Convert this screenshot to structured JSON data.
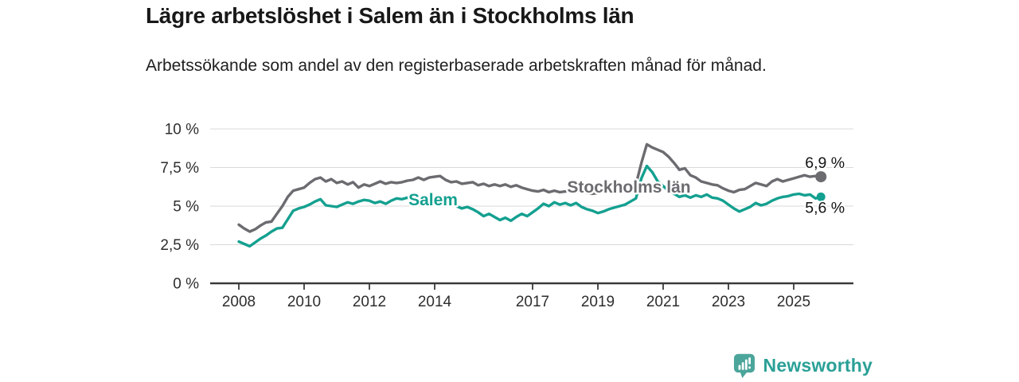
{
  "chart_data": {
    "type": "line",
    "title": "Lägre arbetslöshet i Salem än i Stockholms län",
    "subtitle": "Arbetssökande som andel av den registerbaserade arbetskraften månad för månad.",
    "grid": true,
    "legend": "inline-labels",
    "x_axis": {
      "ticks": [
        {
          "value": 2008,
          "label": "2008"
        },
        {
          "value": 2010,
          "label": "2010"
        },
        {
          "value": 2012,
          "label": "2012"
        },
        {
          "value": 2014,
          "label": "2014"
        },
        {
          "value": 2017,
          "label": "2017"
        },
        {
          "value": 2019,
          "label": "2019"
        },
        {
          "value": 2021,
          "label": "2021"
        },
        {
          "value": 2023,
          "label": "2023"
        },
        {
          "value": 2025,
          "label": "2025"
        }
      ]
    },
    "y_axis": {
      "range": [
        0,
        10
      ],
      "ticks": [
        {
          "value": 0,
          "label": "0 %"
        },
        {
          "value": 2.5,
          "label": "2,5 %"
        },
        {
          "value": 5,
          "label": "5 %"
        },
        {
          "value": 7.5,
          "label": "7,5 %"
        },
        {
          "value": 10,
          "label": "10 %"
        }
      ]
    },
    "x_range_years": [
      2008.0,
      2025.83
    ],
    "x_step_years": 0.166667,
    "series": [
      {
        "name": "Stockholms län",
        "color": "#6b6b70",
        "label": {
          "text": "Stockholms län",
          "x_year": 2019.95,
          "y_value": 6.25
        },
        "end_label": "6,9 %",
        "end_value": 6.9,
        "values": [
          3.8,
          3.55,
          3.35,
          3.5,
          3.75,
          3.95,
          4.0,
          4.5,
          5.0,
          5.6,
          6.0,
          6.1,
          6.2,
          6.5,
          6.75,
          6.85,
          6.6,
          6.75,
          6.5,
          6.6,
          6.4,
          6.55,
          6.2,
          6.4,
          6.3,
          6.45,
          6.6,
          6.45,
          6.55,
          6.5,
          6.55,
          6.65,
          6.7,
          6.85,
          6.7,
          6.85,
          6.9,
          6.95,
          6.7,
          6.55,
          6.6,
          6.45,
          6.5,
          6.55,
          6.35,
          6.45,
          6.3,
          6.4,
          6.3,
          6.4,
          6.25,
          6.35,
          6.2,
          6.1,
          6.0,
          5.95,
          6.05,
          5.9,
          6.0,
          5.9,
          5.95,
          6.05,
          5.9,
          6.0,
          5.85,
          5.8,
          5.85,
          5.95,
          6.0,
          6.05,
          6.0,
          6.1,
          6.2,
          6.4,
          7.8,
          9.0,
          8.8,
          8.65,
          8.5,
          8.2,
          7.8,
          7.35,
          7.45,
          7.0,
          6.85,
          6.6,
          6.5,
          6.4,
          6.35,
          6.15,
          6.0,
          5.9,
          6.05,
          6.1,
          6.3,
          6.5,
          6.4,
          6.3,
          6.6,
          6.75,
          6.6,
          6.7,
          6.8,
          6.9,
          7.0,
          6.9,
          6.95,
          6.9
        ]
      },
      {
        "name": "Salem",
        "color": "#14a090",
        "label": {
          "text": "Salem",
          "x_year": 2013.95,
          "y_value": 5.4
        },
        "end_label": "5,6 %",
        "end_value": 5.6,
        "values": [
          2.7,
          2.55,
          2.4,
          2.65,
          2.9,
          3.1,
          3.35,
          3.55,
          3.6,
          4.15,
          4.7,
          4.85,
          4.95,
          5.1,
          5.3,
          5.45,
          5.05,
          5.0,
          4.95,
          5.1,
          5.25,
          5.15,
          5.3,
          5.4,
          5.35,
          5.2,
          5.3,
          5.15,
          5.35,
          5.5,
          5.45,
          5.55,
          5.4,
          5.5,
          5.6,
          5.5,
          5.45,
          5.55,
          5.3,
          5.1,
          5.0,
          4.85,
          4.95,
          4.8,
          4.6,
          4.35,
          4.5,
          4.3,
          4.1,
          4.25,
          4.05,
          4.3,
          4.5,
          4.35,
          4.6,
          4.85,
          5.15,
          5.0,
          5.25,
          5.1,
          5.2,
          5.05,
          5.2,
          4.95,
          4.8,
          4.7,
          4.55,
          4.65,
          4.8,
          4.9,
          5.0,
          5.1,
          5.3,
          5.5,
          6.8,
          7.6,
          7.2,
          6.6,
          6.3,
          6.0,
          5.8,
          5.6,
          5.7,
          5.55,
          5.7,
          5.6,
          5.75,
          5.55,
          5.5,
          5.35,
          5.1,
          4.85,
          4.65,
          4.8,
          4.95,
          5.2,
          5.05,
          5.15,
          5.35,
          5.5,
          5.6,
          5.65,
          5.75,
          5.8,
          5.7,
          5.75,
          5.5,
          5.6
        ]
      }
    ]
  },
  "footer": {
    "brand": "Newsworthy",
    "brand_color": "#2aa097",
    "logo_icon": "bar-chart-speech-bubble-icon"
  }
}
